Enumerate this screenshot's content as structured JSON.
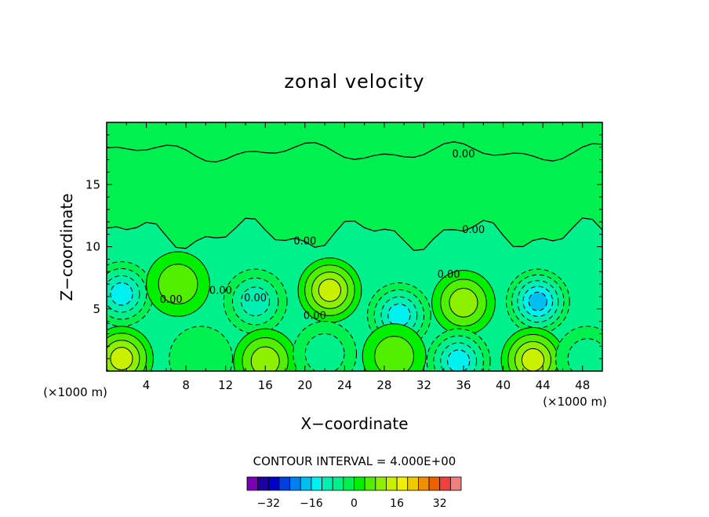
{
  "chart_data": {
    "type": "heatmap",
    "title": "zonal velocity",
    "xlabel": "X−coordinate",
    "ylabel": "Z−coordinate",
    "x_unit_left": "(×1000 m)",
    "x_unit_right": "(×1000 m)",
    "xlim": [
      0,
      50
    ],
    "ylim": [
      0,
      20
    ],
    "x_ticks": [
      4,
      8,
      12,
      16,
      20,
      24,
      28,
      32,
      36,
      40,
      44,
      48
    ],
    "x_tick_labels": [
      "4",
      "8",
      "12",
      "16",
      "20",
      "24",
      "28",
      "32",
      "36",
      "40",
      "44",
      "48"
    ],
    "y_ticks": [
      5,
      10,
      15
    ],
    "y_tick_labels": [
      "5",
      "10",
      "15"
    ],
    "contour_interval_text": "CONTOUR INTERVAL = 4.000E+00",
    "contour_labels": [
      "0.00",
      "0.00",
      "0.00",
      "0.00",
      "0.00",
      "0.00",
      "0.00",
      "0.00"
    ],
    "colorbar": {
      "levels": [
        -40,
        -36,
        -32,
        -28,
        -24,
        -20,
        -16,
        -12,
        -8,
        -4,
        0,
        4,
        8,
        12,
        16,
        20,
        24,
        28,
        32,
        36,
        40
      ],
      "colors": [
        "#7a00b4",
        "#1e00a0",
        "#0000c8",
        "#0040e0",
        "#0080f0",
        "#00bff0",
        "#00f0f0",
        "#00f0b4",
        "#00f08c",
        "#00f050",
        "#00f000",
        "#50f000",
        "#8cf000",
        "#c8f000",
        "#f0f000",
        "#f0c800",
        "#f09000",
        "#f06000",
        "#f04040",
        "#f08080"
      ],
      "tick_values": [
        -32,
        -16,
        0,
        16,
        32
      ],
      "tick_labels": [
        "−32",
        "−16",
        "0",
        "16",
        "32"
      ]
    },
    "field_colors": {
      "upper_background": "#00f050",
      "middle_band": "#00f08c"
    },
    "blobs": [
      {
        "x": 1.5,
        "z": 6.2,
        "value": -16
      },
      {
        "x": 7.2,
        "z": 7.0,
        "value": 6
      },
      {
        "x": 15.0,
        "z": 5.6,
        "value": -10
      },
      {
        "x": 22.5,
        "z": 6.5,
        "value": 14
      },
      {
        "x": 29.5,
        "z": 4.5,
        "value": -14
      },
      {
        "x": 36.0,
        "z": 5.5,
        "value": 10
      },
      {
        "x": 43.5,
        "z": 5.6,
        "value": -20
      },
      {
        "x": 1.5,
        "z": 1.0,
        "value": 14
      },
      {
        "x": 9.5,
        "z": 1.0,
        "value": -4
      },
      {
        "x": 16.0,
        "z": 0.8,
        "value": 12
      },
      {
        "x": 22.0,
        "z": 1.4,
        "value": -8
      },
      {
        "x": 29.0,
        "z": 1.2,
        "value": 8
      },
      {
        "x": 35.5,
        "z": 0.8,
        "value": -16
      },
      {
        "x": 43.0,
        "z": 0.9,
        "value": 16
      },
      {
        "x": 48.5,
        "z": 1.0,
        "value": -6
      }
    ]
  }
}
